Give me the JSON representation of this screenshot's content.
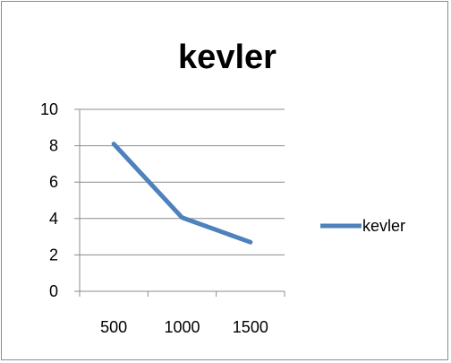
{
  "chart_data": {
    "type": "line",
    "title": "kevler",
    "categories": [
      "500",
      "1000",
      "1500"
    ],
    "series": [
      {
        "name": "kevler",
        "values": [
          8.1,
          4.05,
          2.7
        ],
        "color": "#4f81bd"
      }
    ],
    "ylim": [
      0,
      10
    ],
    "yticks": [
      0,
      2,
      4,
      6,
      8,
      10
    ],
    "grid": true,
    "legend": "right",
    "axis_color": "#8c8c8c",
    "grid_color": "#8c8c8c"
  }
}
